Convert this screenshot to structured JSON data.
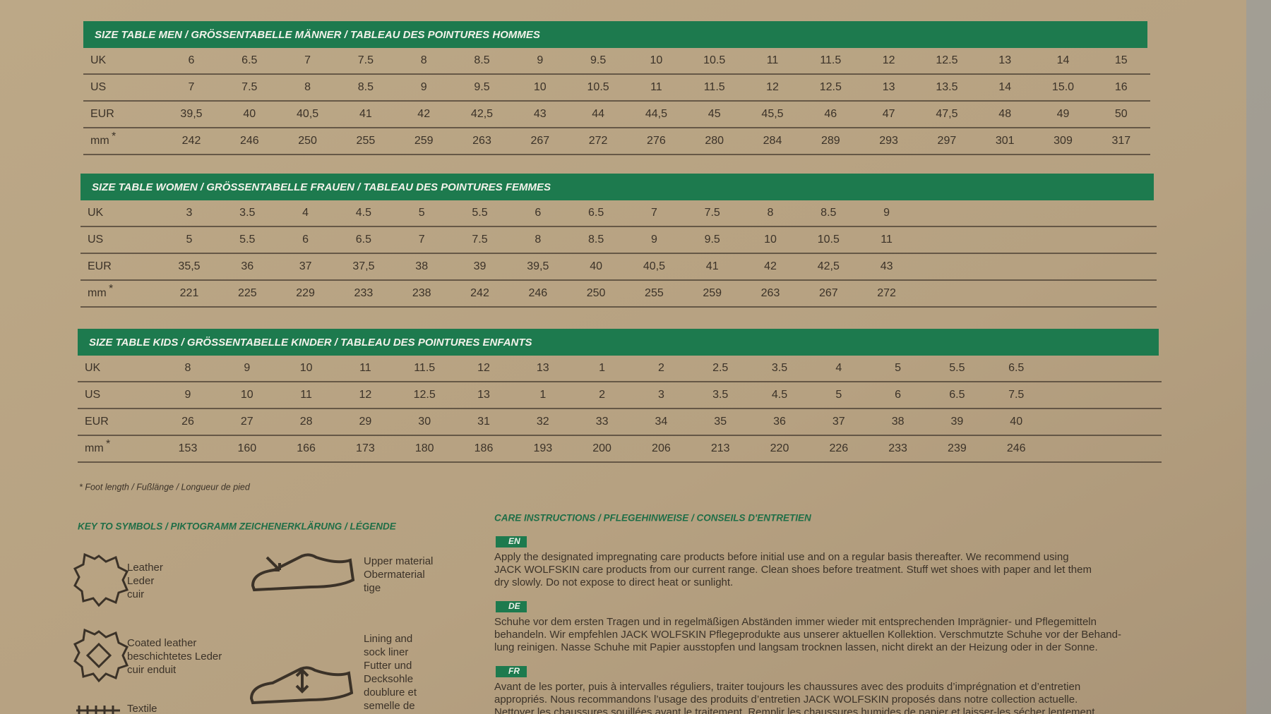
{
  "tables": [
    {
      "title": "SIZE TABLE MEN / GRÖSSENTABELLE MÄNNER / TABLEAU DES POINTURES HOMMES",
      "rows": [
        {
          "label": "UK",
          "cells": [
            "6",
            "6.5",
            "7",
            "7.5",
            "8",
            "8.5",
            "9",
            "9.5",
            "10",
            "10.5",
            "11",
            "11.5",
            "12",
            "12.5",
            "13",
            "14",
            "15"
          ]
        },
        {
          "label": "US",
          "cells": [
            "7",
            "7.5",
            "8",
            "8.5",
            "9",
            "9.5",
            "10",
            "10.5",
            "11",
            "11.5",
            "12",
            "12.5",
            "13",
            "13.5",
            "14",
            "15.0",
            "16"
          ]
        },
        {
          "label": "EUR",
          "cells": [
            "39,5",
            "40",
            "40,5",
            "41",
            "42",
            "42,5",
            "43",
            "44",
            "44,5",
            "45",
            "45,5",
            "46",
            "47",
            "47,5",
            "48",
            "49",
            "50"
          ]
        },
        {
          "label": "mm",
          "mark": "*",
          "cells": [
            "242",
            "246",
            "250",
            "255",
            "259",
            "263",
            "267",
            "272",
            "276",
            "280",
            "284",
            "289",
            "293",
            "297",
            "301",
            "309",
            "317"
          ]
        }
      ]
    },
    {
      "title": "SIZE TABLE WOMEN / GRÖSSENTABELLE FRAUEN / TABLEAU DES POINTURES FEMMES",
      "rows": [
        {
          "label": "UK",
          "cells": [
            "3",
            "3.5",
            "4",
            "4.5",
            "5",
            "5.5",
            "6",
            "6.5",
            "7",
            "7.5",
            "8",
            "8.5",
            "9"
          ]
        },
        {
          "label": "US",
          "cells": [
            "5",
            "5.5",
            "6",
            "6.5",
            "7",
            "7.5",
            "8",
            "8.5",
            "9",
            "9.5",
            "10",
            "10.5",
            "11"
          ]
        },
        {
          "label": "EUR",
          "cells": [
            "35,5",
            "36",
            "37",
            "37,5",
            "38",
            "39",
            "39,5",
            "40",
            "40,5",
            "41",
            "42",
            "42,5",
            "43"
          ]
        },
        {
          "label": "mm",
          "mark": "*",
          "cells": [
            "221",
            "225",
            "229",
            "233",
            "238",
            "242",
            "246",
            "250",
            "255",
            "259",
            "263",
            "267",
            "272"
          ]
        }
      ]
    },
    {
      "title": "SIZE TABLE KIDS / GRÖSSENTABELLE KINDER / TABLEAU DES POINTURES ENFANTS",
      "rows": [
        {
          "label": "UK",
          "cells": [
            "8",
            "9",
            "10",
            "11",
            "11.5",
            "12",
            "13",
            "1",
            "2",
            "2.5",
            "3.5",
            "4",
            "5",
            "5.5",
            "6.5"
          ]
        },
        {
          "label": "US",
          "cells": [
            "9",
            "10",
            "11",
            "12",
            "12.5",
            "13",
            "1",
            "2",
            "3",
            "3.5",
            "4.5",
            "5",
            "6",
            "6.5",
            "7.5"
          ]
        },
        {
          "label": "EUR",
          "cells": [
            "26",
            "27",
            "28",
            "29",
            "30",
            "31",
            "32",
            "33",
            "34",
            "35",
            "36",
            "37",
            "38",
            "39",
            "40"
          ]
        },
        {
          "label": "mm",
          "mark": "*",
          "cells": [
            "153",
            "160",
            "166",
            "173",
            "180",
            "186",
            "193",
            "200",
            "206",
            "213",
            "220",
            "226",
            "233",
            "239",
            "246"
          ]
        }
      ]
    }
  ],
  "footnote": "* Foot length / Fußlänge / Longueur de pied",
  "key": {
    "heading": "KEY TO SYMBOLS / PIKTOGRAMM ZEICHENERKLÄRUNG / LÉGENDE",
    "items": [
      {
        "lines": [
          "Leather",
          "Leder",
          "cuir"
        ]
      },
      {
        "lines": [
          "Upper material",
          "Obermaterial",
          "tige"
        ]
      },
      {
        "lines": [
          "Coated leather",
          "beschichtetes Leder",
          "cuir enduit"
        ]
      },
      {
        "lines": [
          "Lining and",
          "sock liner",
          "Futter und",
          "Decksohle",
          "doublure et",
          "semelle de"
        ]
      },
      {
        "lines": [
          "Textile"
        ]
      }
    ]
  },
  "care": {
    "heading": "CARE INSTRUCTIONS / PFLEGEHINWEISE / CONSEILS D'ENTRETIEN",
    "blocks": [
      {
        "lang": "EN",
        "lines": [
          "Apply the designated impregnating care products before initial use and on a regular basis thereafter. We recommend using",
          "JACK WOLFSKIN care products from our current range. Clean shoes before treatment. Stuff wet shoes with paper and let them",
          "dry slowly. Do not expose to direct heat or sunlight."
        ]
      },
      {
        "lang": "DE",
        "lines": [
          "Schuhe vor dem ersten Tragen und in regelmäßigen Abständen immer wieder mit entsprechenden Imprägnier- und Pflegemitteln",
          "behandeln. Wir empfehlen JACK WOLFSKIN Pflegeprodukte aus unserer aktuellen Kollektion. Verschmutzte Schuhe vor der Behand-",
          "lung reinigen. Nasse Schuhe mit Papier ausstopfen und langsam trocknen lassen, nicht direkt an der Heizung oder in der Sonne."
        ]
      },
      {
        "lang": "FR",
        "lines": [
          "Avant de les porter, puis à intervalles réguliers, traiter toujours les chaussures avec des produits d’imprégnation et d’entretien",
          "appropriés. Nous recommandons l’usage des produits d’entretien JACK WOLFSKIN proposés dans notre collection actuelle.",
          "Nettoyer les chaussures souillées avant le traitement. Remplir les chaussures humides de papier et laisser-les sécher lentement."
        ]
      }
    ]
  }
}
